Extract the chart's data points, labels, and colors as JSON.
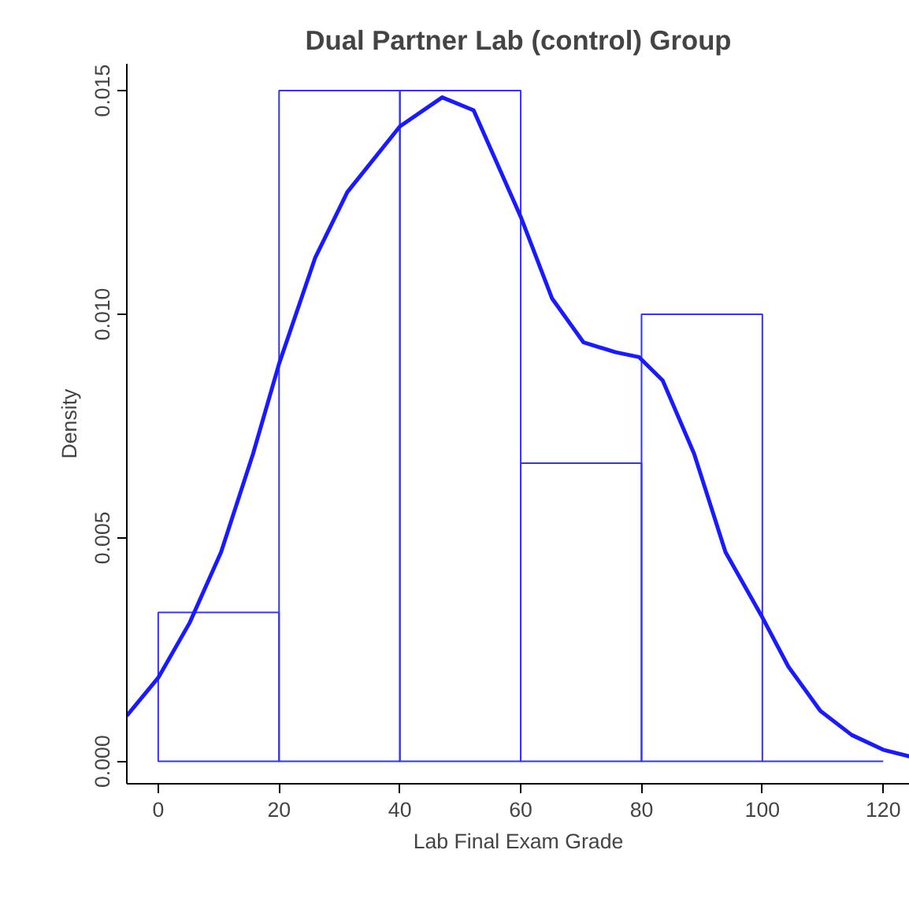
{
  "chart_data": {
    "type": "histogram",
    "title": "Dual Partner Lab (control) Group",
    "xlabel": "Lab Final Exam Grade",
    "ylabel": "Density",
    "bins": [
      0,
      20,
      40,
      60,
      80,
      100,
      120
    ],
    "series": [
      {
        "color": "#3333ff",
        "values": [
          0.00333,
          0.015,
          0.015,
          0.00667,
          0.01,
          0
        ]
      },
      {
        "type": "line",
        "color": "#1a1aff",
        "x": [
          -5.2,
          0,
          5.2,
          10.4,
          15.7,
          20,
          26,
          31.3,
          40,
          47,
          52.2,
          60,
          65.2,
          70.4,
          75.7,
          79.6,
          83.5,
          88.7,
          93.9,
          100,
          104.3,
          109.6,
          114.8,
          120,
          124.4
        ],
        "values": [
          0.00102,
          0.00187,
          0.0031,
          0.00468,
          0.00688,
          0.00889,
          0.01127,
          0.01273,
          0.0142,
          0.01485,
          0.01456,
          0.01218,
          0.01035,
          0.00937,
          0.00915,
          0.00904,
          0.00852,
          0.00688,
          0.00468,
          0.00322,
          0.00212,
          0.00113,
          0.00059,
          0.00026,
          0.00011
        ]
      }
    ],
    "xlim": [
      -5.2,
      124.4
    ],
    "ylim": [
      -0.0005,
      0.0156
    ],
    "xticks": [
      0,
      20,
      40,
      60,
      80,
      100,
      120
    ],
    "yticks": [
      {
        "value": 0,
        "label": "0.000"
      },
      {
        "value": 0.005,
        "label": "0.005"
      },
      {
        "value": 0.01,
        "label": "0.010"
      },
      {
        "value": 0.015,
        "label": "0.015"
      }
    ],
    "grid": false
  }
}
